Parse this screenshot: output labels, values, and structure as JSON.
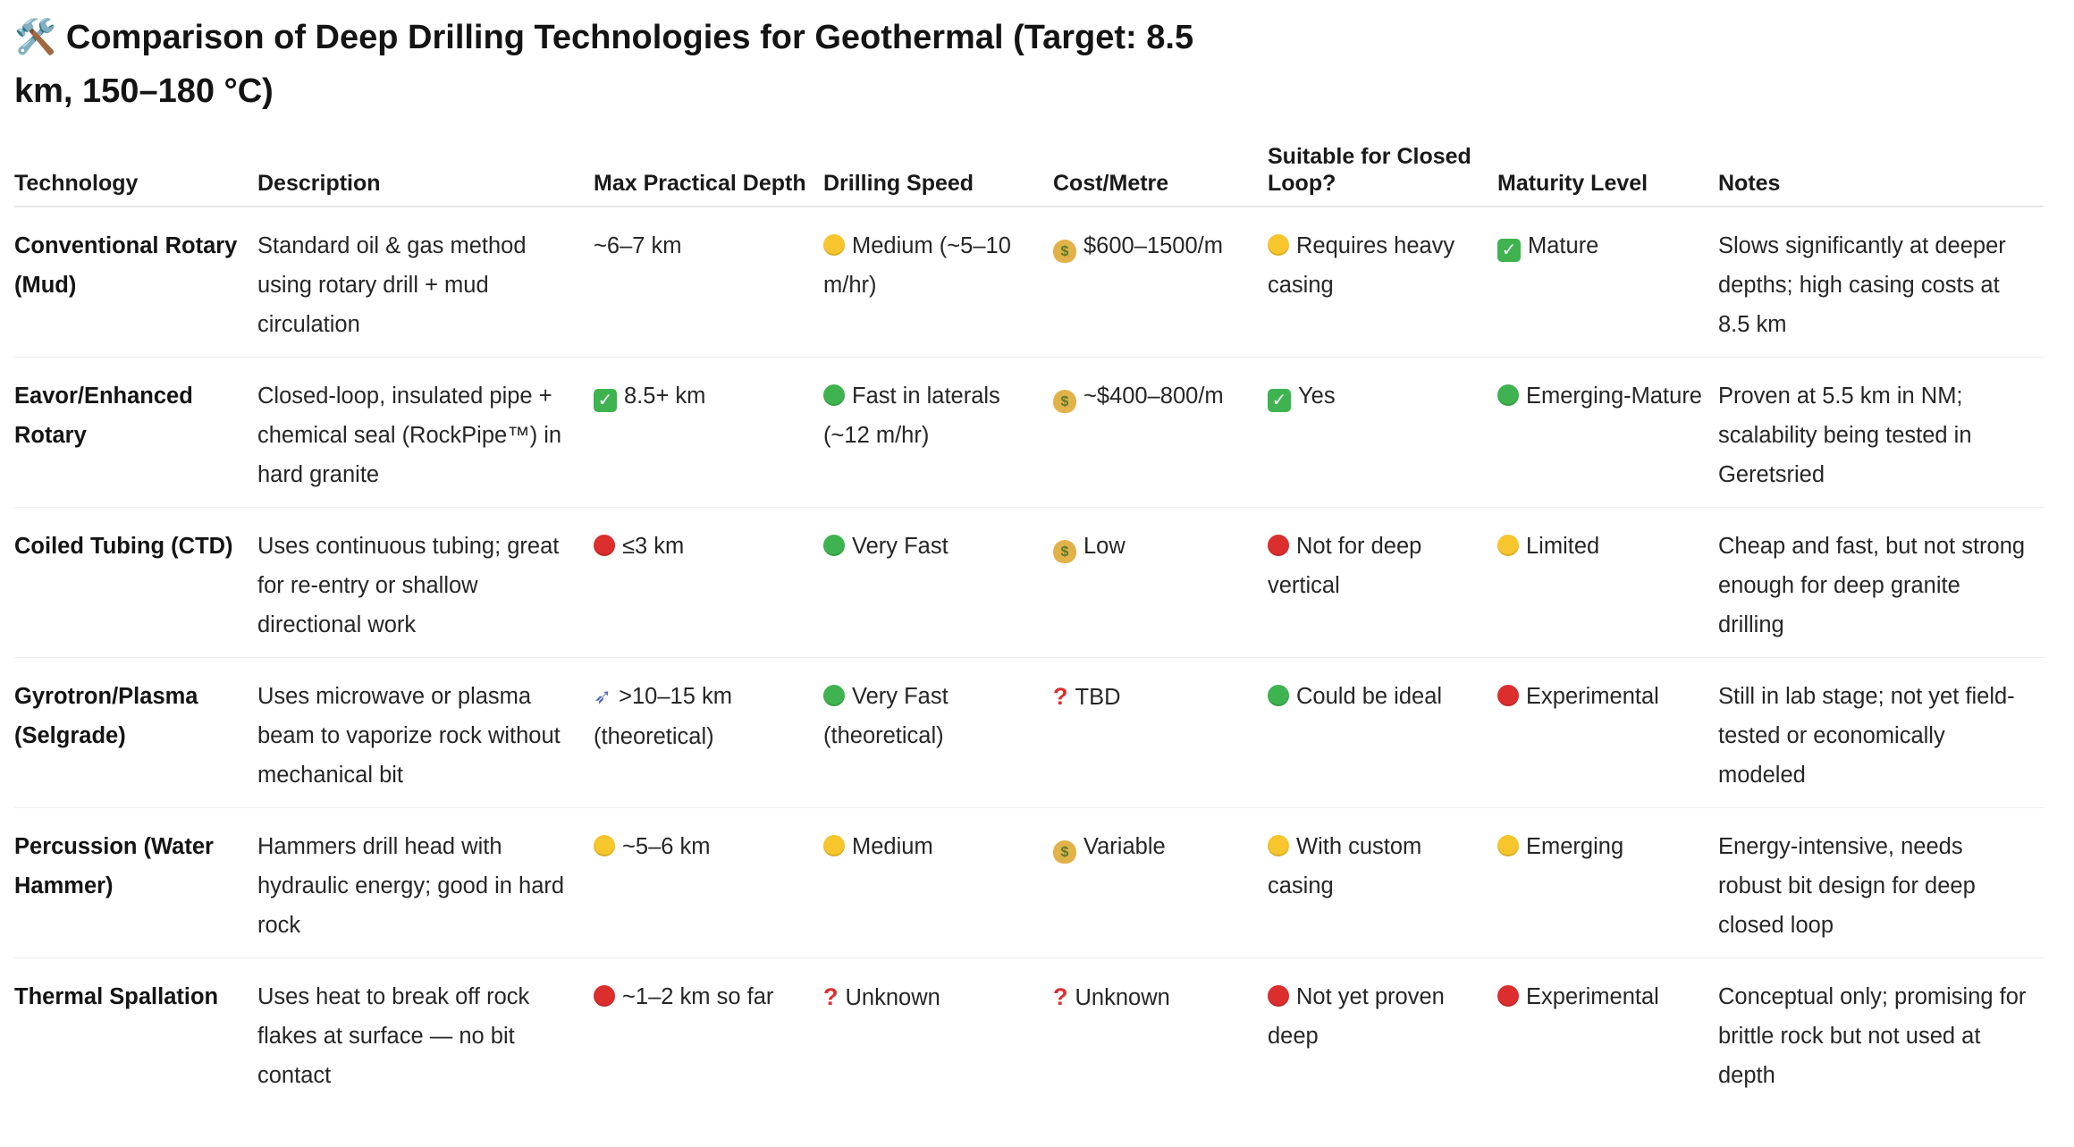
{
  "title": "🛠️ Comparison of Deep Drilling Technologies for Geothermal (Target: 8.5 km, 150–180 °C)",
  "columns": [
    "Technology",
    "Description",
    "Max Practical Depth",
    "Drilling Speed",
    "Cost/Metre",
    "Suitable for Closed Loop?",
    "Maturity Level",
    "Notes"
  ],
  "rows": [
    {
      "technology": "Conventional Rotary (Mud)",
      "description": "Standard oil & gas method using rotary drill + mud circulation",
      "depth": {
        "icon": "",
        "text": "~6–7 km"
      },
      "speed": {
        "icon": "yellow-circle",
        "text": "Medium (~5–10 m/hr)"
      },
      "cost": {
        "icon": "money-bag",
        "text": "$600–1500/m"
      },
      "closed_loop": {
        "icon": "yellow-circle",
        "text": "Requires heavy casing"
      },
      "maturity": {
        "icon": "check-mark",
        "text": "Mature"
      },
      "notes": "Slows significantly at deeper depths; high casing costs at 8.5 km"
    },
    {
      "technology": "Eavor/Enhanced Rotary",
      "description": "Closed-loop, insulated pipe + chemical seal (RockPipe™) in hard granite",
      "depth": {
        "icon": "check-mark",
        "text": "8.5+ km"
      },
      "speed": {
        "icon": "green-circle",
        "text": "Fast in laterals (~12 m/hr)"
      },
      "cost": {
        "icon": "money-bag",
        "text": "~$400–800/m"
      },
      "closed_loop": {
        "icon": "check-mark",
        "text": "Yes"
      },
      "maturity": {
        "icon": "green-circle",
        "text": "Emerging-Mature"
      },
      "notes": "Proven at 5.5 km in NM; scalability being tested in Geretsried"
    },
    {
      "technology": "Coiled Tubing (CTD)",
      "description": "Uses continuous tubing; great for re-entry or shallow directional work",
      "depth": {
        "icon": "red-circle",
        "text": "≤3 km"
      },
      "speed": {
        "icon": "green-circle",
        "text": "Very Fast"
      },
      "cost": {
        "icon": "money-bag",
        "text": "Low"
      },
      "closed_loop": {
        "icon": "red-circle",
        "text": "Not for deep vertical"
      },
      "maturity": {
        "icon": "yellow-circle",
        "text": "Limited"
      },
      "notes": "Cheap and fast, but not strong enough for deep granite drilling"
    },
    {
      "technology": "Gyrotron/Plasma (Selgrade)",
      "description": "Uses microwave or plasma beam to vaporize rock without mechanical bit",
      "depth": {
        "icon": "rocket",
        "text": ">10–15 km (theoretical)"
      },
      "speed": {
        "icon": "green-circle",
        "text": "Very Fast (theoretical)"
      },
      "cost": {
        "icon": "question-mark",
        "text": "TBD"
      },
      "closed_loop": {
        "icon": "green-circle",
        "text": "Could be ideal"
      },
      "maturity": {
        "icon": "red-circle",
        "text": "Experimental"
      },
      "notes": "Still in lab stage; not yet field-tested or economically modeled"
    },
    {
      "technology": "Percussion (Water Hammer)",
      "description": "Hammers drill head with hydraulic energy; good in hard rock",
      "depth": {
        "icon": "yellow-circle",
        "text": "~5–6 km"
      },
      "speed": {
        "icon": "yellow-circle",
        "text": "Medium"
      },
      "cost": {
        "icon": "money-bag",
        "text": "Variable"
      },
      "closed_loop": {
        "icon": "yellow-circle",
        "text": "With custom casing"
      },
      "maturity": {
        "icon": "yellow-circle",
        "text": "Emerging"
      },
      "notes": "Energy-intensive, needs robust bit design for deep closed loop"
    },
    {
      "technology": "Thermal Spallation",
      "description": "Uses heat to break off rock flakes at surface — no bit contact",
      "depth": {
        "icon": "red-circle",
        "text": "~1–2 km so far"
      },
      "speed": {
        "icon": "question-mark",
        "text": "Unknown"
      },
      "cost": {
        "icon": "question-mark",
        "text": "Unknown"
      },
      "closed_loop": {
        "icon": "red-circle",
        "text": "Not yet proven deep"
      },
      "maturity": {
        "icon": "red-circle",
        "text": "Experimental"
      },
      "notes": "Conceptual only; promising for brittle rock but not used at depth"
    }
  ]
}
